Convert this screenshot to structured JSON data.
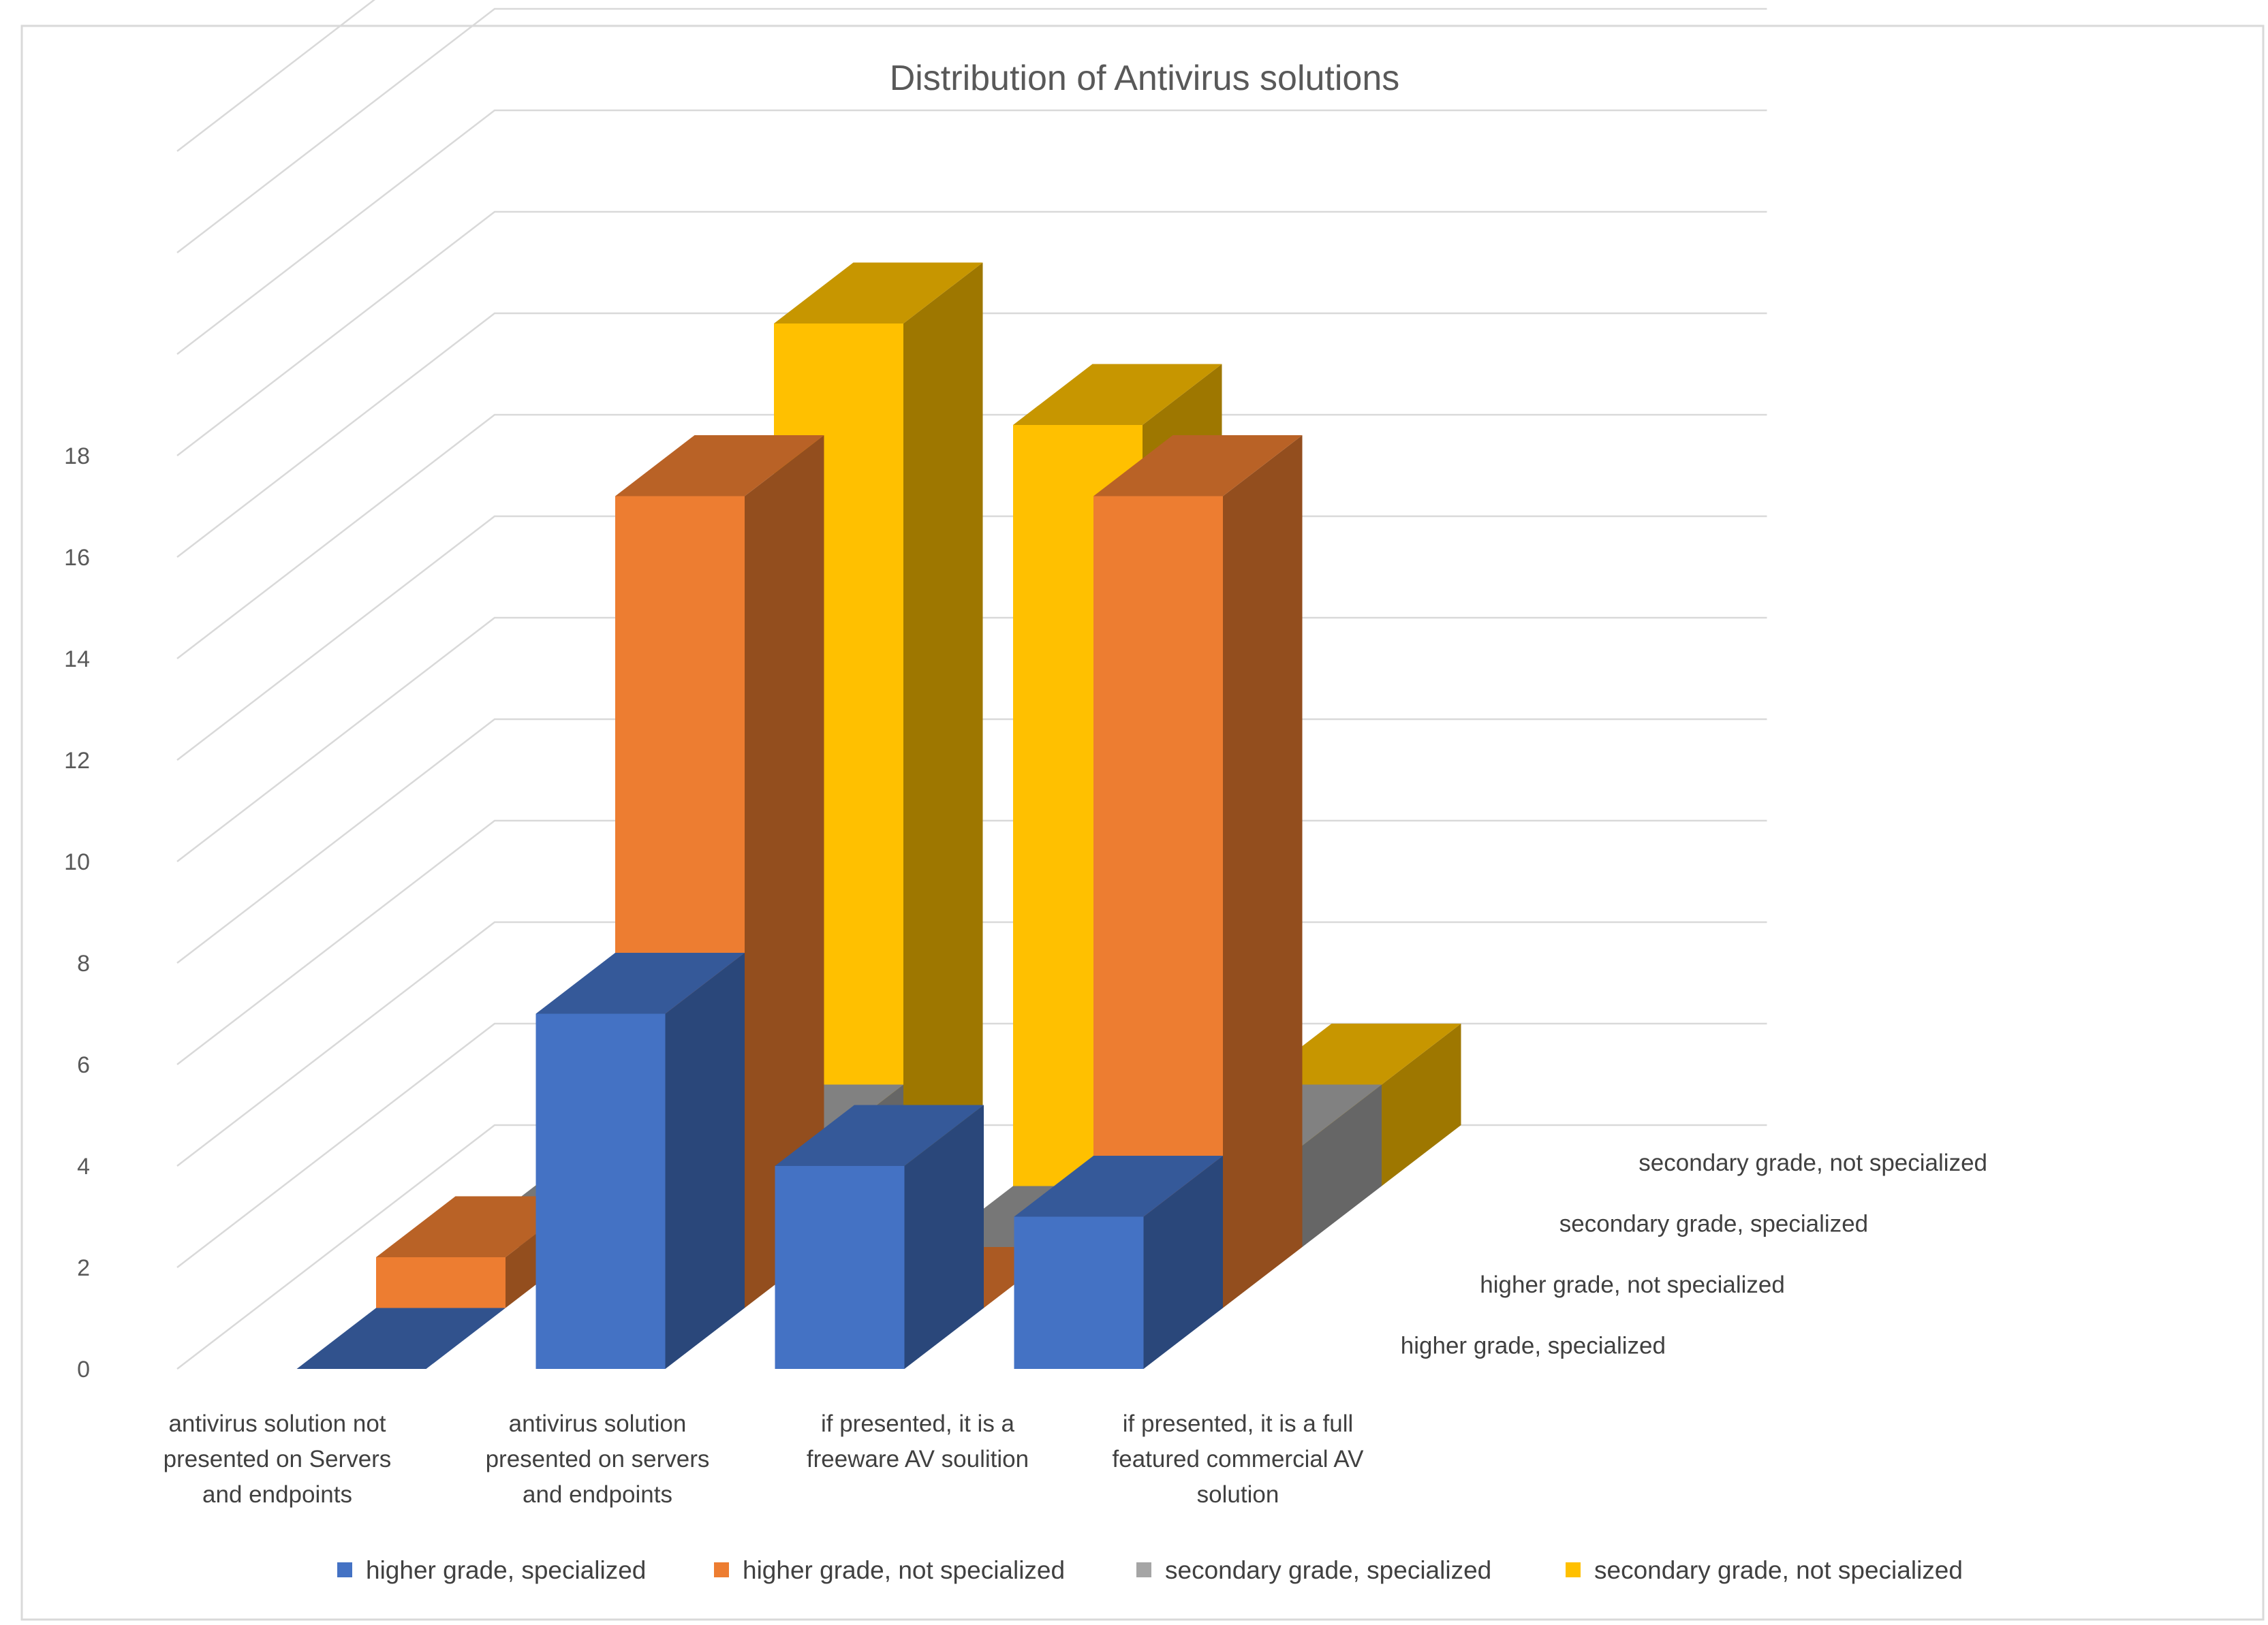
{
  "chart_data": {
    "type": "bar",
    "subtype": "3d-column",
    "title": "Distribution of Antivirus solutions",
    "categories": [
      [
        "antivirus solution not",
        "presented on Servers",
        "and endpoints"
      ],
      [
        "antivirus solution",
        "presented on servers",
        "and endpoints"
      ],
      [
        "if presented, it is a",
        "freeware AV soulition"
      ],
      [
        "if presented, it is a full",
        "featured commercial AV",
        "solution"
      ]
    ],
    "series": [
      {
        "name": "higher grade, specialized",
        "color": "#4472C4",
        "values": [
          0,
          7,
          4,
          3
        ]
      },
      {
        "name": "higher grade, not specialized",
        "color": "#ED7D31",
        "values": [
          1,
          16,
          0,
          16
        ]
      },
      {
        "name": "secondary grade, specialized",
        "color": "#A5A5A5",
        "values": [
          0,
          2,
          0,
          2
        ]
      },
      {
        "name": "secondary grade, not specialized",
        "color": "#FFC000",
        "values": [
          0,
          17,
          15,
          2
        ]
      }
    ],
    "yticks": [
      0,
      2,
      4,
      6,
      8,
      10,
      12,
      14,
      16,
      18
    ],
    "ylim": [
      0,
      24
    ],
    "grid": true,
    "legend": "bottom"
  }
}
